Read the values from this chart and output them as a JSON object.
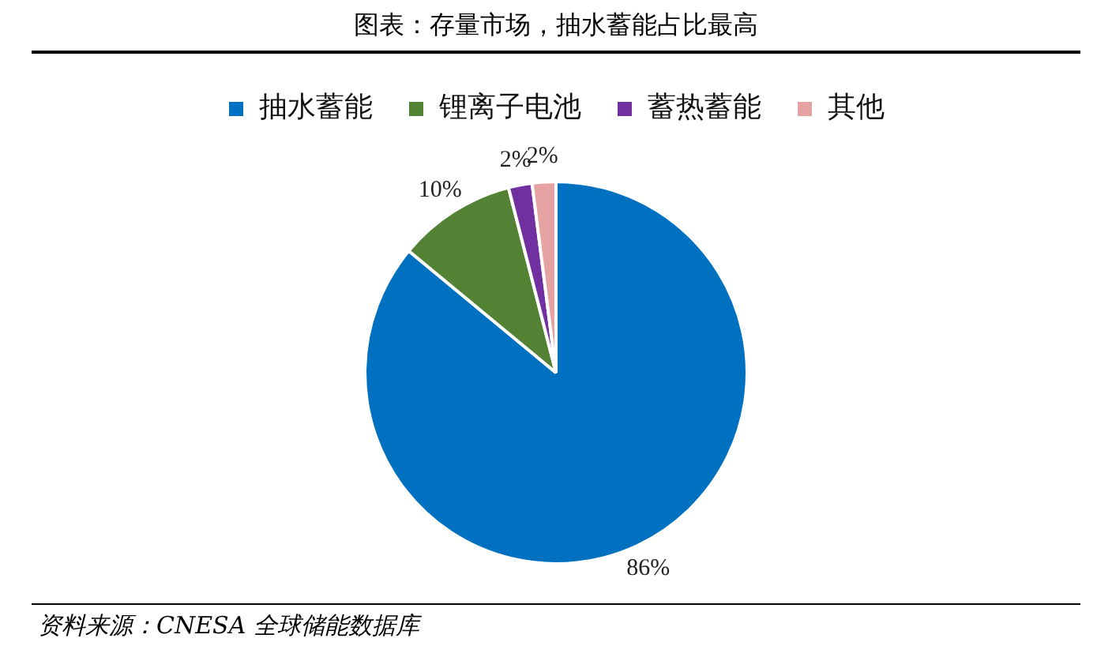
{
  "chart_data": {
    "type": "pie",
    "title": "图表：存量市场，抽水蓄能占比最高",
    "categories": [
      "抽水蓄能",
      "锂离子电池",
      "蓄热蓄能",
      "其他"
    ],
    "values": [
      86,
      10,
      2,
      2
    ],
    "colors": [
      "#0070c0",
      "#548235",
      "#7030a0",
      "#e6a3a3"
    ],
    "value_labels": [
      "86%",
      "10%",
      "2%",
      "2%"
    ],
    "legend": "top",
    "annotations": [
      "资料来源：CNESA 全球储能数据库"
    ]
  }
}
